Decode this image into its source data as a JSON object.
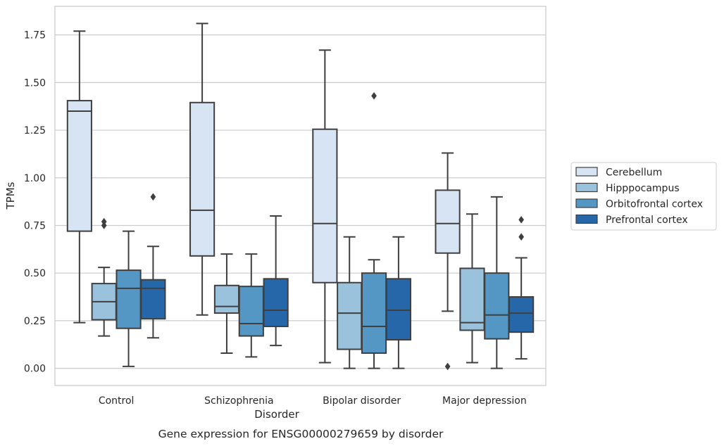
{
  "chart_data": {
    "type": "box",
    "title": "",
    "caption": "Gene expression for ENSG00000279659 by disorder",
    "xlabel": "Disorder",
    "ylabel": "TPMs",
    "ylim": [
      -0.09,
      1.9
    ],
    "yticks": [
      "0.00",
      "0.25",
      "0.50",
      "0.75",
      "1.00",
      "1.25",
      "1.50",
      "1.75"
    ],
    "grid": "horizontal",
    "legend_position": "right",
    "categories": [
      "Control",
      "Schizophrenia",
      "Bipolar disorder",
      "Major depression"
    ],
    "series": [
      {
        "name": "Cerebellum",
        "color": "#d6e4f3",
        "boxes": [
          {
            "whisker_low": 0.24,
            "q1": 0.72,
            "median": 1.35,
            "q3": 1.405,
            "whisker_high": 1.77,
            "outliers": []
          },
          {
            "whisker_low": 0.28,
            "q1": 0.59,
            "median": 0.83,
            "q3": 1.395,
            "whisker_high": 1.81,
            "outliers": []
          },
          {
            "whisker_low": 0.03,
            "q1": 0.45,
            "median": 0.76,
            "q3": 1.255,
            "whisker_high": 1.67,
            "outliers": []
          },
          {
            "whisker_low": 0.3,
            "q1": 0.605,
            "median": 0.76,
            "q3": 0.935,
            "whisker_high": 1.13,
            "outliers": [
              0.01
            ]
          }
        ]
      },
      {
        "name": "Hipppocampus",
        "color": "#9ac2dc",
        "boxes": [
          {
            "whisker_low": 0.17,
            "q1": 0.255,
            "median": 0.35,
            "q3": 0.445,
            "whisker_high": 0.53,
            "outliers": [
              0.75,
              0.77
            ]
          },
          {
            "whisker_low": 0.08,
            "q1": 0.29,
            "median": 0.325,
            "q3": 0.435,
            "whisker_high": 0.6,
            "outliers": []
          },
          {
            "whisker_low": 0.0,
            "q1": 0.1,
            "median": 0.29,
            "q3": 0.45,
            "whisker_high": 0.69,
            "outliers": []
          },
          {
            "whisker_low": 0.03,
            "q1": 0.2,
            "median": 0.24,
            "q3": 0.525,
            "whisker_high": 0.81,
            "outliers": []
          }
        ]
      },
      {
        "name": "Orbitofrontal cortex",
        "color": "#5597c4",
        "boxes": [
          {
            "whisker_low": 0.01,
            "q1": 0.21,
            "median": 0.42,
            "q3": 0.515,
            "whisker_high": 0.72,
            "outliers": []
          },
          {
            "whisker_low": 0.06,
            "q1": 0.17,
            "median": 0.235,
            "q3": 0.43,
            "whisker_high": 0.6,
            "outliers": []
          },
          {
            "whisker_low": 0.0,
            "q1": 0.08,
            "median": 0.22,
            "q3": 0.5,
            "whisker_high": 0.57,
            "outliers": [
              1.43
            ]
          },
          {
            "whisker_low": 0.0,
            "q1": 0.155,
            "median": 0.28,
            "q3": 0.5,
            "whisker_high": 0.9,
            "outliers": []
          }
        ]
      },
      {
        "name": "Prefrontal cortex",
        "color": "#2567a8",
        "boxes": [
          {
            "whisker_low": 0.16,
            "q1": 0.26,
            "median": 0.42,
            "q3": 0.465,
            "whisker_high": 0.64,
            "outliers": [
              0.9
            ]
          },
          {
            "whisker_low": 0.12,
            "q1": 0.22,
            "median": 0.305,
            "q3": 0.47,
            "whisker_high": 0.8,
            "outliers": []
          },
          {
            "whisker_low": 0.0,
            "q1": 0.15,
            "median": 0.305,
            "q3": 0.47,
            "whisker_high": 0.69,
            "outliers": []
          },
          {
            "whisker_low": 0.05,
            "q1": 0.19,
            "median": 0.29,
            "q3": 0.375,
            "whisker_high": 0.58,
            "outliers": [
              0.69,
              0.78
            ]
          }
        ]
      }
    ]
  }
}
